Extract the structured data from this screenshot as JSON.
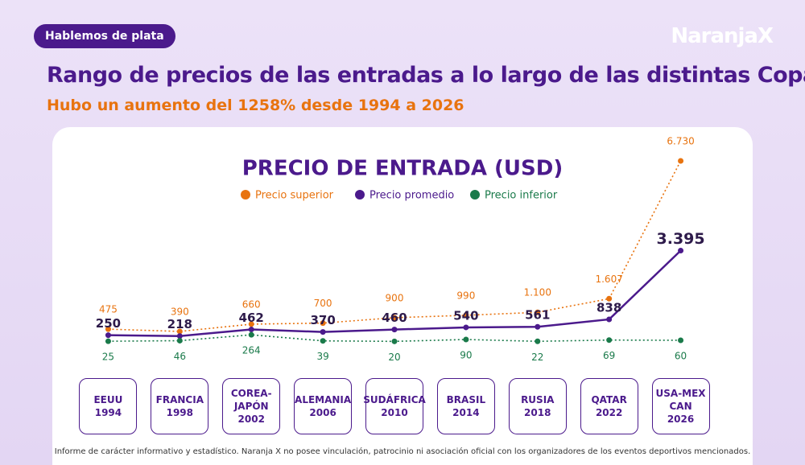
{
  "header": {
    "tag": "Hablemos de plata",
    "brand": "NaranjaX",
    "title": "Rango de precios de las entradas a lo largo de las distintas Copas",
    "subtitle": "Hubo un aumento del 1258% desde 1994 a 2026"
  },
  "chart_data": {
    "type": "line",
    "title": "PRECIO DE ENTRADA (USD)",
    "categories": [
      "EEUU\n1994",
      "FRANCIA\n1998",
      "COREA-\nJAPÓN\n2002",
      "ALEMANIA\n2006",
      "SUDÁFRICA\n2010",
      "BRASIL\n2014",
      "RUSIA\n2018",
      "QATAR\n2022",
      "USA-MEX\nCAN\n2026"
    ],
    "series": [
      {
        "name": "Precio superior",
        "color": "#e8730f",
        "values": [
          475,
          390,
          660,
          700,
          900,
          990,
          1100,
          1607,
          6730
        ],
        "value_labels": [
          "475",
          "390",
          "660",
          "700",
          "900",
          "990",
          "1.100",
          "1.607",
          "6.730"
        ]
      },
      {
        "name": "Precio promedio",
        "color": "#4b1a8c",
        "values": [
          250,
          218,
          462,
          370,
          460,
          540,
          561,
          838,
          3395
        ],
        "value_labels": [
          "250",
          "218",
          "462",
          "370",
          "460",
          "540",
          "561",
          "838",
          "3.395"
        ]
      },
      {
        "name": "Precio inferior",
        "color": "#1a7a4a",
        "values": [
          25,
          46,
          264,
          39,
          20,
          90,
          22,
          69,
          60
        ]
      }
    ]
  },
  "footer": "Informe de carácter informativo y estadístico. Naranja X no posee vinculación, patrocinio ni asociación oficial con los organizadores de los eventos deportivos mencionados."
}
